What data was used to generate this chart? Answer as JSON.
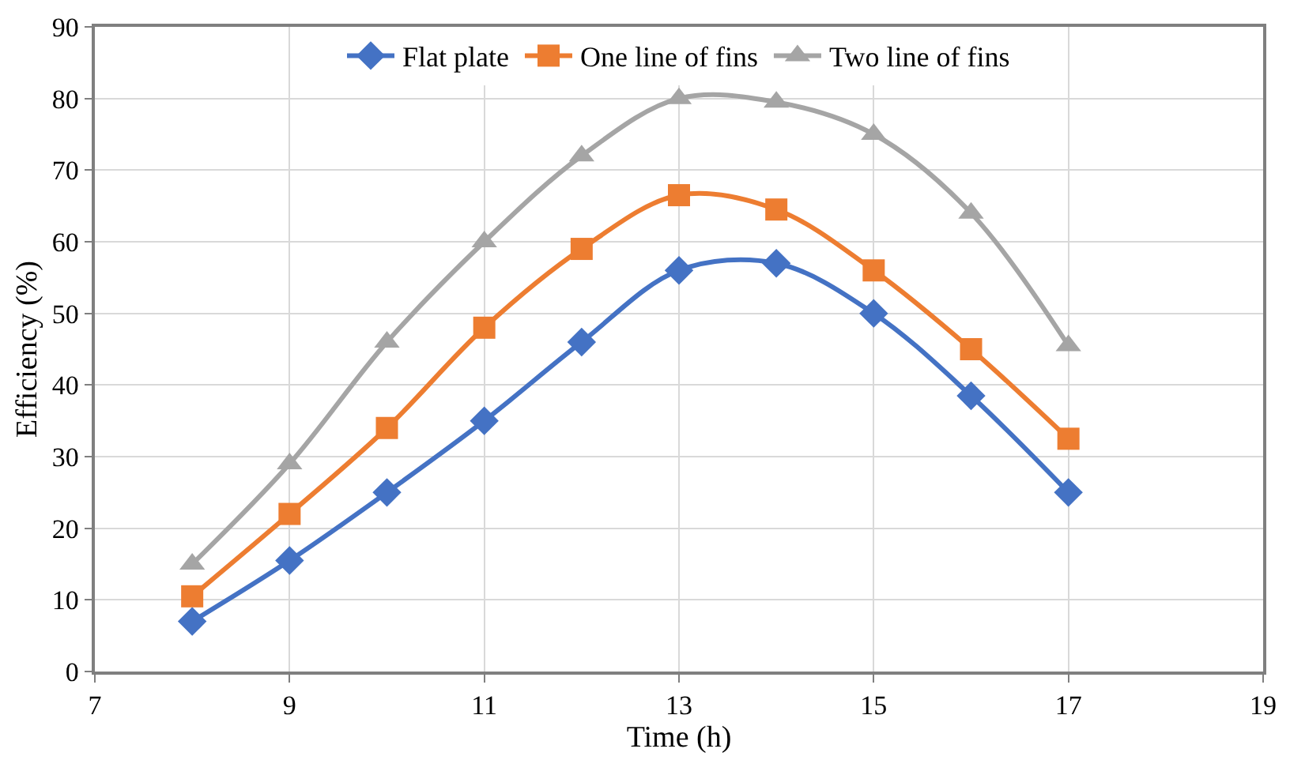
{
  "chart_data": {
    "type": "line",
    "xlabel": "Time (h)",
    "ylabel": "Efficiency (%)",
    "x": [
      8,
      9,
      10,
      11,
      12,
      13,
      14,
      15,
      16,
      17
    ],
    "series": [
      {
        "name": "Flat plate",
        "color": "#4472c4",
        "marker": "diamond",
        "values": [
          7,
          15.5,
          25,
          35,
          46,
          56,
          57,
          50,
          38.5,
          25
        ]
      },
      {
        "name": "One line of fins",
        "color": "#ed7d31",
        "marker": "square",
        "values": [
          10.5,
          22,
          34,
          48,
          59,
          66.5,
          64.5,
          56,
          45,
          32.5
        ]
      },
      {
        "name": "Two line of fins",
        "color": "#a5a5a5",
        "marker": "triangle",
        "values": [
          15,
          29,
          46,
          60,
          72,
          80,
          79.5,
          75,
          64,
          45.5
        ]
      }
    ],
    "xlim": [
      7,
      19
    ],
    "xticks": [
      7,
      9,
      11,
      13,
      15,
      17,
      19
    ],
    "ylim": [
      0,
      90
    ],
    "yticks": [
      0,
      10,
      20,
      30,
      40,
      50,
      60,
      70,
      80,
      90
    ],
    "grid": true,
    "legend": "top",
    "line_style": "solid"
  }
}
